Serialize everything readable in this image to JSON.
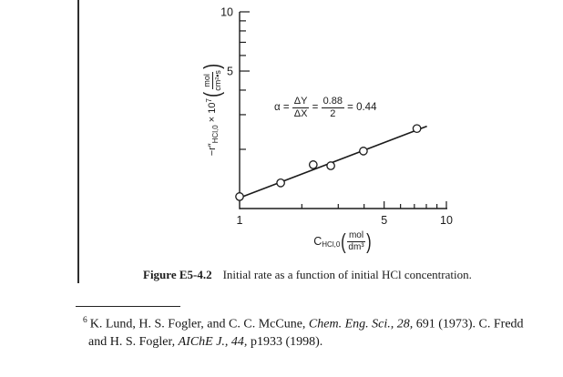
{
  "page": {
    "bg": "#ffffff",
    "ink": "#1b1b1b"
  },
  "chart_data": {
    "type": "scatter",
    "x_scale": "log",
    "y_scale": "log",
    "xlim": [
      1,
      10
    ],
    "ylim": [
      1,
      10
    ],
    "grid": false,
    "marker": "open-circle",
    "xlabel": "C_HCl,0 (mol/dm^3)",
    "ylabel": "-r\"_HCl,0 x 10^7 (mol/(cm^2*s))",
    "x_ticks": [
      2,
      3,
      4,
      5,
      6,
      7,
      8,
      9,
      10
    ],
    "y_ticks": [
      2,
      3,
      4,
      5,
      6,
      7,
      8,
      9,
      10
    ],
    "x_major_ticks": [
      5,
      10
    ],
    "y_major_ticks": [
      5,
      10
    ],
    "x_tick_labels": [
      {
        "value": 1,
        "label": "1"
      },
      {
        "value": 5,
        "label": "5"
      },
      {
        "value": 10,
        "label": "10"
      }
    ],
    "y_tick_labels": [
      {
        "value": 5,
        "label": "5"
      },
      {
        "value": 10,
        "label": "10"
      }
    ],
    "points": [
      [
        1.0,
        1.15
      ],
      [
        1.58,
        1.35
      ],
      [
        2.27,
        1.67
      ],
      [
        2.76,
        1.65
      ],
      [
        3.97,
        1.96
      ],
      [
        7.2,
        2.55
      ]
    ],
    "fit_line": {
      "x1": 0.97,
      "y1": 1.12,
      "x2": 8.05,
      "y2": 2.62
    },
    "slope": 0.44,
    "annotation_text": "alpha = dY/dX = 0.88/2 = 0.44",
    "annotation_parts": {
      "lead": "α = ",
      "num1": "ΔY",
      "den1": "ΔX",
      "eq": " = ",
      "num2": "0.88",
      "den2": "2",
      "tail": " = 0.44"
    },
    "ylabel_parts": {
      "prefix": "−r″",
      "sub": "HCl,0",
      "mult": " × 10",
      "exp": "7",
      "lparen": "(",
      "num": "mol",
      "den": "cm²•s",
      "rparen": ")"
    },
    "xlabel_parts": {
      "prefix": "C",
      "sub": "HCl,0",
      "lparen": "(",
      "num": "mol",
      "den": "dm³",
      "rparen": ")"
    }
  },
  "figure": {
    "caption_label": "Figure E5-4.2",
    "caption_text": "Initial rate as a function of initial HCl concentration."
  },
  "footnote": {
    "marker": "6",
    "line1": {
      "a": "K. Lund, H. S. Fogler, and C. C. McCune, ",
      "i": "Chem. Eng. Sci., 28,",
      "b": " 691 (1973). C. Fredd"
    },
    "line2": {
      "a": "and H. S. Fogler, ",
      "i": "AIChE J., 44,",
      "b": " p1933 (1998)."
    }
  }
}
